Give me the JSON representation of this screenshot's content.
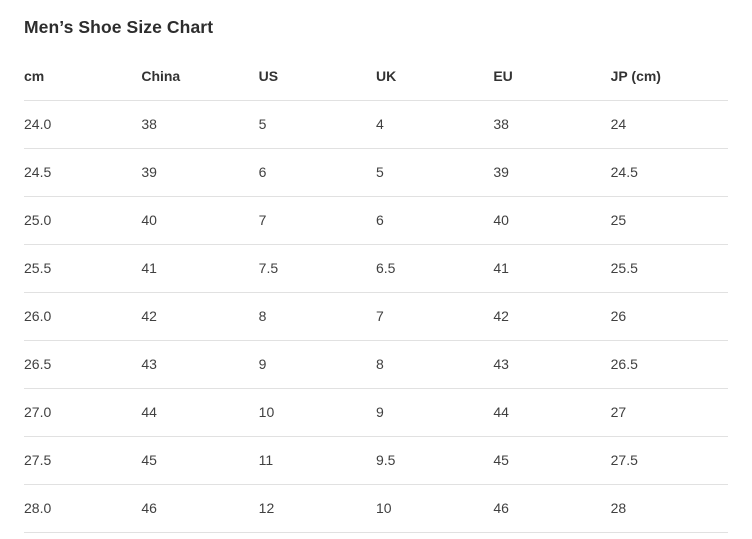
{
  "page": {
    "title": "Men’s Shoe Size Chart"
  },
  "colors": {
    "background": "#ffffff",
    "title_text": "#2d2d2d",
    "header_text": "#333333",
    "cell_text": "#404040",
    "row_border": "#e1e1e1"
  },
  "table": {
    "headers": [
      "cm",
      "China",
      "US",
      "UK",
      "EU",
      "JP (cm)"
    ],
    "rows": [
      [
        "24.0",
        "38",
        "5",
        "4",
        "38",
        "24"
      ],
      [
        "24.5",
        "39",
        "6",
        "5",
        "39",
        "24.5"
      ],
      [
        "25.0",
        "40",
        "7",
        "6",
        "40",
        "25"
      ],
      [
        "25.5",
        "41",
        "7.5",
        "6.5",
        "41",
        "25.5"
      ],
      [
        "26.0",
        "42",
        "8",
        "7",
        "42",
        "26"
      ],
      [
        "26.5",
        "43",
        "9",
        "8",
        "43",
        "26.5"
      ],
      [
        "27.0",
        "44",
        "10",
        "9",
        "44",
        "27"
      ],
      [
        "27.5",
        "45",
        "11",
        "9.5",
        "45",
        "27.5"
      ],
      [
        "28.0",
        "46",
        "12",
        "10",
        "46",
        "28"
      ]
    ]
  },
  "chart_data": {
    "type": "table",
    "title": "Men’s Shoe Size Chart",
    "columns": [
      "cm",
      "China",
      "US",
      "UK",
      "EU",
      "JP (cm)"
    ],
    "rows": [
      [
        "24.0",
        "38",
        "5",
        "4",
        "38",
        "24"
      ],
      [
        "24.5",
        "39",
        "6",
        "5",
        "39",
        "24.5"
      ],
      [
        "25.0",
        "40",
        "7",
        "6",
        "40",
        "25"
      ],
      [
        "25.5",
        "41",
        "7.5",
        "6.5",
        "41",
        "25.5"
      ],
      [
        "26.0",
        "42",
        "8",
        "7",
        "42",
        "26"
      ],
      [
        "26.5",
        "43",
        "9",
        "8",
        "43",
        "26.5"
      ],
      [
        "27.0",
        "44",
        "10",
        "9",
        "44",
        "27"
      ],
      [
        "27.5",
        "45",
        "11",
        "9.5",
        "45",
        "27.5"
      ],
      [
        "28.0",
        "46",
        "12",
        "10",
        "46",
        "28"
      ]
    ],
    "layout_hints": {
      "header_row_bold": true,
      "row_separators": true,
      "text_align": "left",
      "grid": "horizontal-only"
    }
  }
}
